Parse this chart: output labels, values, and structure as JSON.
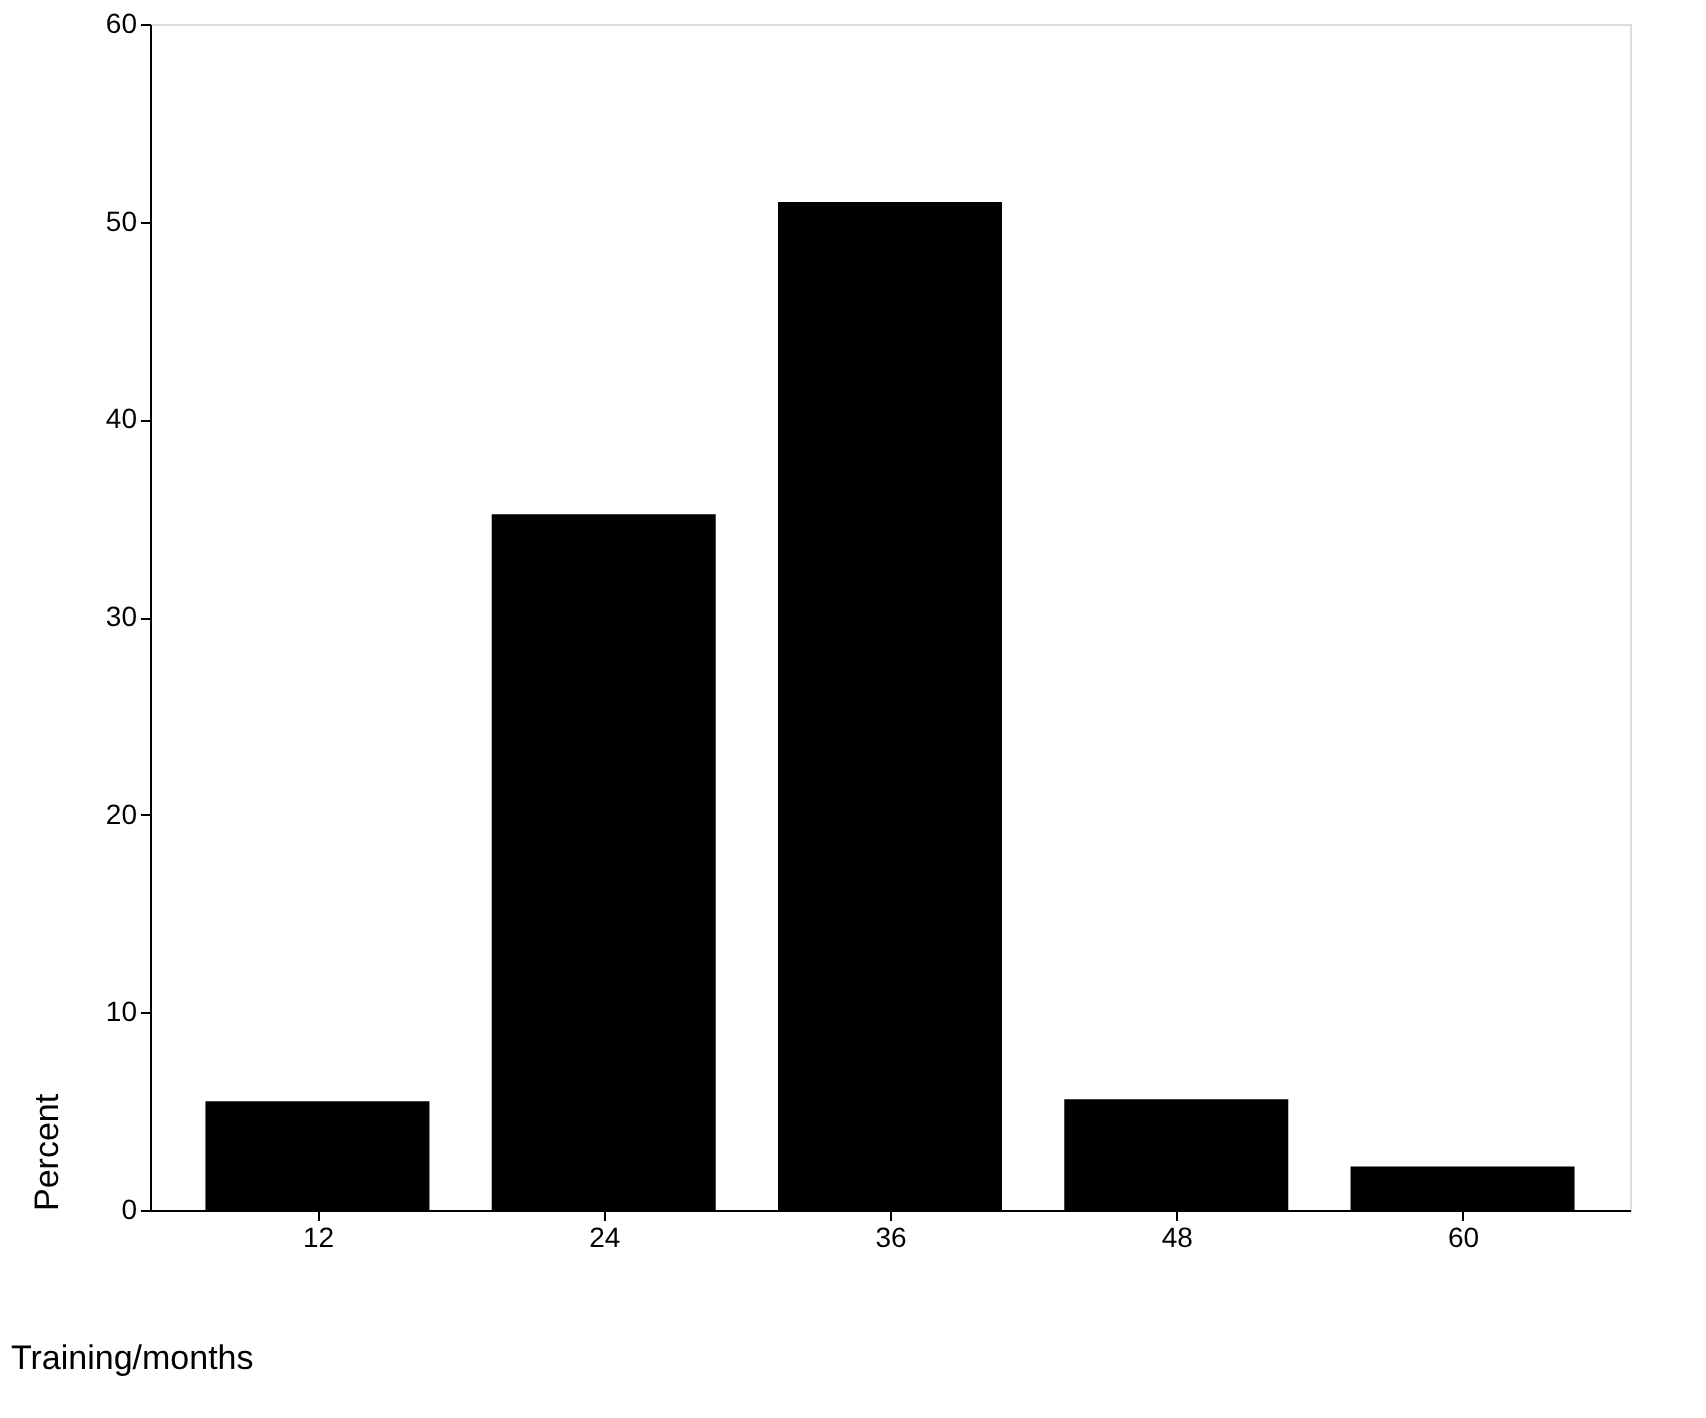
{
  "chart_data": {
    "type": "bar",
    "xlabel": "Training/months",
    "ylabel": "Percent",
    "categories": [
      "12",
      "24",
      "36",
      "48",
      "60"
    ],
    "values": [
      5.5,
      35.2,
      51.0,
      5.6,
      2.2
    ],
    "color": "#000000",
    "ylim": [
      0,
      60
    ],
    "yticks": [
      0,
      10,
      20,
      30,
      40,
      50,
      60
    ],
    "grid": false
  }
}
